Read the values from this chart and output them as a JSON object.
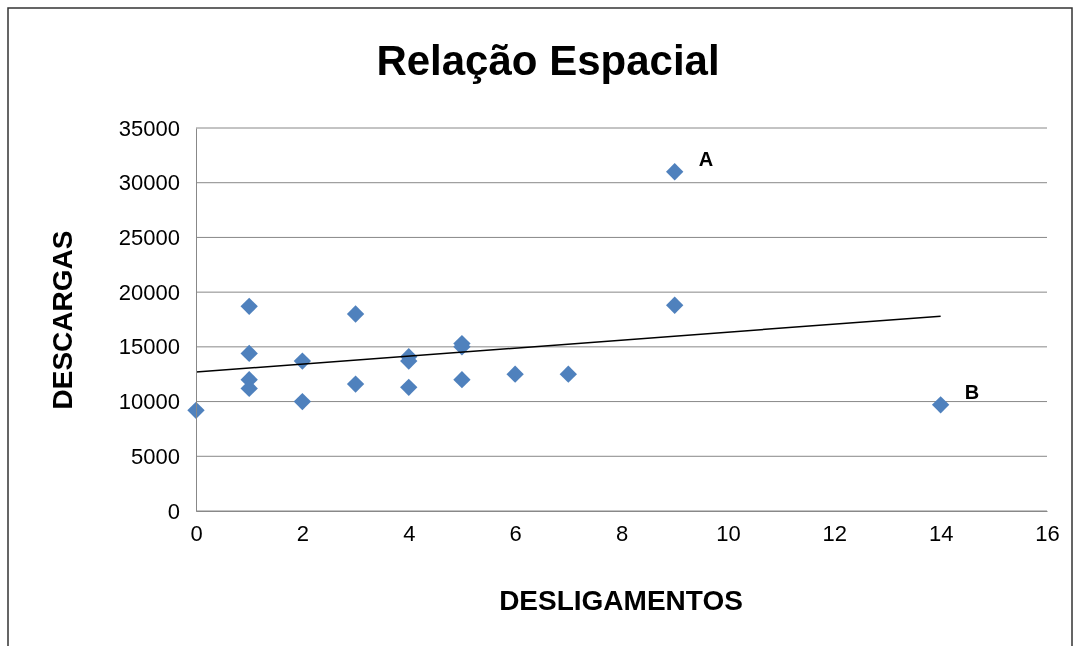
{
  "chart_data": {
    "type": "scatter",
    "title": "Relação Espacial",
    "xlabel": "DESLIGAMENTOS",
    "ylabel": "DESCARGAS",
    "series": [
      {
        "marker": "diamond",
        "color": "#4f81bd",
        "x": [
          0,
          1,
          1,
          1,
          1,
          2,
          2,
          3,
          3,
          4,
          4,
          4,
          5,
          5,
          5,
          6,
          7,
          9,
          9,
          14
        ],
        "values": [
          9200,
          18700,
          14400,
          12000,
          11200,
          13700,
          10000,
          18000,
          11600,
          14100,
          13700,
          11300,
          15300,
          15000,
          12000,
          12500,
          12500,
          31000,
          18800,
          9700
        ]
      },
      {
        "type": "line",
        "color": "#000000",
        "x": [
          0,
          14
        ],
        "values": [
          12700,
          17800
        ]
      }
    ],
    "xlim": [
      0,
      16
    ],
    "xticks": [
      0,
      2,
      4,
      6,
      8,
      10,
      12,
      14,
      16
    ],
    "ylim": [
      0,
      35000
    ],
    "yticks": [
      0,
      5000,
      10000,
      15000,
      20000,
      25000,
      30000,
      35000
    ],
    "grid": "y",
    "annotations": [
      {
        "text": "A",
        "x": 9,
        "y": 31000
      },
      {
        "text": "B",
        "x": 14,
        "y": 9700
      }
    ]
  }
}
